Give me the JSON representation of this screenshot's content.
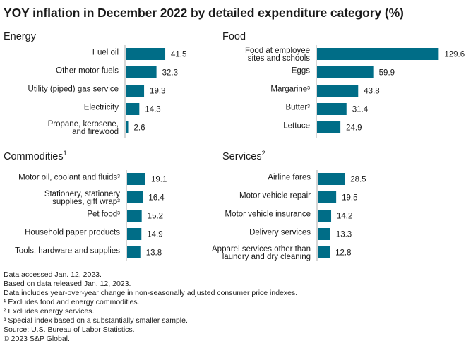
{
  "title": "YOY inflation in December 2022 by detailed expenditure category (%)",
  "bar_color": "#006d87",
  "axis_color": "#c8c8c8",
  "chart_data": [
    {
      "type": "bar",
      "orientation": "horizontal",
      "title": "Energy",
      "title_sup": "",
      "categories": [
        [
          "Fuel oil"
        ],
        [
          "Other motor fuels"
        ],
        [
          "Utility (piped) gas service"
        ],
        [
          "Electricity"
        ],
        [
          "Propane, kerosene,",
          "and firewood"
        ]
      ],
      "values": [
        41.5,
        32.3,
        19.3,
        14.3,
        2.6
      ],
      "xlabel": "",
      "ylabel": "",
      "grid": false
    },
    {
      "type": "bar",
      "orientation": "horizontal",
      "title": "Food",
      "title_sup": "",
      "categories": [
        [
          "Food at employee",
          "sites and schools"
        ],
        [
          "Eggs"
        ],
        [
          "Margarine³"
        ],
        [
          "Butter³"
        ],
        [
          "Lettuce"
        ]
      ],
      "values": [
        129.6,
        59.9,
        43.8,
        31.4,
        24.9
      ],
      "xlabel": "",
      "ylabel": "",
      "grid": false
    },
    {
      "type": "bar",
      "orientation": "horizontal",
      "title": "Commodities",
      "title_sup": "1",
      "categories": [
        [
          "Motor oil, coolant and fluids³"
        ],
        [
          "Stationery, stationery",
          "supplies, gift wrap³"
        ],
        [
          "Pet food³"
        ],
        [
          "Household paper products"
        ],
        [
          "Tools, hardware and supplies"
        ]
      ],
      "values": [
        19.1,
        16.4,
        15.2,
        14.9,
        13.8
      ],
      "xlabel": "",
      "ylabel": "",
      "grid": false
    },
    {
      "type": "bar",
      "orientation": "horizontal",
      "title": "Services",
      "title_sup": "2",
      "categories": [
        [
          "Airline fares"
        ],
        [
          "Motor vehicle repair"
        ],
        [
          "Motor vehicle insurance"
        ],
        [
          "Delivery services"
        ],
        [
          "Apparel services other than",
          "laundry and dry cleaning"
        ]
      ],
      "values": [
        28.5,
        19.5,
        14.2,
        13.3,
        12.8
      ],
      "xlabel": "",
      "ylabel": "",
      "grid": false
    }
  ],
  "footer": [
    "Data accessed Jan. 12, 2023.",
    "Based on data released Jan. 12, 2023.",
    "Data includes year-over-year change in non-seasonally adjusted consumer price indexes.",
    "¹ Excludes food and energy commodities.",
    "² Excludes energy services.",
    "³ Special index based on a substantially smaller sample.",
    "Source: U.S. Bureau of Labor Statistics.",
    "© 2023 S&P Global."
  ]
}
